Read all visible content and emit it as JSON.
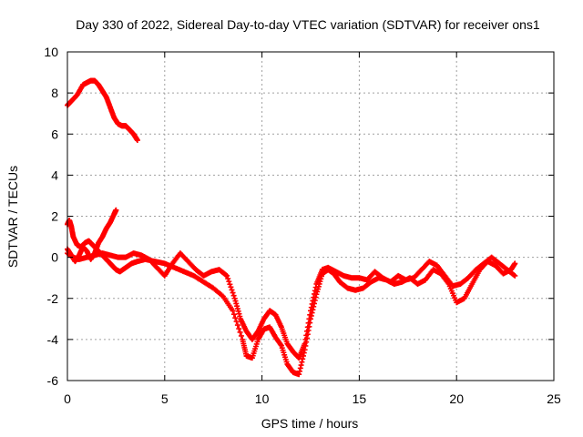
{
  "chart_data": {
    "type": "scatter",
    "title": "Day 330 of 2022, Sidereal Day-to-day VTEC variation (SDTVAR) for receiver ons1",
    "xlabel": "GPS time / hours",
    "ylabel": "SDTVAR / TECUs",
    "xlim": [
      0,
      25
    ],
    "ylim": [
      -6,
      10
    ],
    "xticks": [
      0,
      5,
      10,
      15,
      20,
      25
    ],
    "yticks": [
      -6,
      -4,
      -2,
      0,
      2,
      4,
      6,
      8,
      10
    ],
    "grid": true,
    "marker": "plus",
    "color": "#ff0000",
    "series": [
      {
        "name": "segment-a",
        "x": [
          0.0,
          0.2,
          0.5,
          0.8,
          1.0,
          1.2,
          1.4,
          1.6,
          1.8,
          2.0,
          2.2,
          2.4,
          2.6,
          2.8,
          3.0,
          3.2,
          3.4,
          3.6
        ],
        "y": [
          7.4,
          7.6,
          7.9,
          8.4,
          8.5,
          8.6,
          8.6,
          8.4,
          8.1,
          7.8,
          7.3,
          6.8,
          6.5,
          6.4,
          6.4,
          6.2,
          6.0,
          5.7
        ]
      },
      {
        "name": "segment-b",
        "x": [
          0.0,
          0.2,
          0.4,
          0.6,
          0.8,
          1.0,
          1.2,
          1.4,
          1.6,
          1.8,
          2.0,
          2.2,
          2.4,
          2.5
        ],
        "y": [
          0.4,
          0.1,
          -0.2,
          0.1,
          0.5,
          0.3,
          -0.1,
          0.2,
          0.7,
          1.0,
          1.4,
          1.7,
          2.1,
          2.3
        ]
      },
      {
        "name": "segment-c",
        "x": [
          0.0,
          0.1,
          0.2,
          0.3,
          0.5,
          0.7,
          0.9,
          1.1,
          1.3,
          1.5,
          1.7,
          1.9,
          2.1,
          2.3,
          2.5,
          2.7,
          3.0,
          3.3,
          3.6,
          4.0,
          4.5,
          5.0,
          5.5,
          6.0,
          6.5,
          7.0,
          7.5,
          8.0,
          8.5,
          9.0,
          9.2,
          9.5,
          9.8,
          10.1,
          10.4,
          10.7,
          11.0,
          11.3,
          11.6,
          11.9,
          12.2,
          12.5,
          12.8,
          13.1,
          13.4,
          13.7,
          14.0,
          14.4,
          14.8,
          15.2,
          15.6,
          16.0,
          16.4,
          16.8,
          17.2,
          17.6,
          18.0,
          18.4,
          18.8,
          19.2,
          19.6,
          20.0,
          20.4,
          20.8,
          21.2,
          21.6,
          22.0,
          22.4,
          22.8,
          23.0
        ],
        "y": [
          1.6,
          1.8,
          1.5,
          1.0,
          0.6,
          0.5,
          0.7,
          0.8,
          0.6,
          0.4,
          0.2,
          0.0,
          -0.2,
          -0.4,
          -0.6,
          -0.7,
          -0.5,
          -0.3,
          -0.2,
          -0.1,
          -0.2,
          -0.3,
          -0.5,
          -0.7,
          -0.9,
          -1.2,
          -1.5,
          -1.9,
          -2.6,
          -4.0,
          -4.8,
          -4.9,
          -4.0,
          -3.5,
          -3.4,
          -3.9,
          -4.3,
          -5.2,
          -5.6,
          -5.7,
          -4.5,
          -3.0,
          -1.8,
          -0.8,
          -0.6,
          -0.8,
          -1.2,
          -1.5,
          -1.6,
          -1.5,
          -1.2,
          -1.0,
          -1.1,
          -1.3,
          -1.2,
          -1.0,
          -1.3,
          -1.1,
          -0.6,
          -0.8,
          -1.3,
          -2.2,
          -2.0,
          -1.3,
          -0.6,
          -0.2,
          -0.4,
          -0.8,
          -0.6,
          -0.3
        ]
      },
      {
        "name": "segment-d",
        "x": [
          0.0,
          0.3,
          0.6,
          1.0,
          1.4,
          1.8,
          2.2,
          2.6,
          3.0,
          3.4,
          3.8,
          4.2,
          4.6,
          5.0,
          5.4,
          5.8,
          6.2,
          6.6,
          7.0,
          7.4,
          7.8,
          8.2,
          8.6,
          8.9,
          9.2,
          9.5,
          9.8,
          10.1,
          10.4,
          10.7,
          11.0,
          11.3,
          11.6,
          11.9,
          12.2,
          12.5,
          12.8,
          13.1,
          13.4,
          13.8,
          14.2,
          14.6,
          15.0,
          15.4,
          15.8,
          16.2,
          16.6,
          17.0,
          17.4,
          17.8,
          18.2,
          18.6,
          19.0,
          19.4,
          19.8,
          20.2,
          20.6,
          21.0,
          21.4,
          21.8,
          22.2,
          22.6,
          23.0
        ],
        "y": [
          0.2,
          0.0,
          -0.1,
          0.0,
          0.1,
          0.2,
          0.1,
          0.0,
          0.0,
          0.2,
          0.1,
          -0.1,
          -0.5,
          -0.9,
          -0.3,
          0.2,
          -0.2,
          -0.6,
          -0.9,
          -0.7,
          -0.6,
          -0.9,
          -2.0,
          -3.0,
          -3.6,
          -4.0,
          -3.6,
          -3.0,
          -2.6,
          -2.8,
          -3.4,
          -4.2,
          -4.6,
          -4.9,
          -4.2,
          -2.6,
          -1.3,
          -0.6,
          -0.5,
          -0.7,
          -0.9,
          -1.0,
          -1.0,
          -1.1,
          -0.7,
          -1.0,
          -1.2,
          -0.9,
          -1.1,
          -1.0,
          -0.6,
          -0.2,
          -0.4,
          -0.9,
          -1.4,
          -1.3,
          -1.0,
          -0.6,
          -0.3,
          0.0,
          -0.3,
          -0.6,
          -0.9
        ]
      }
    ]
  }
}
